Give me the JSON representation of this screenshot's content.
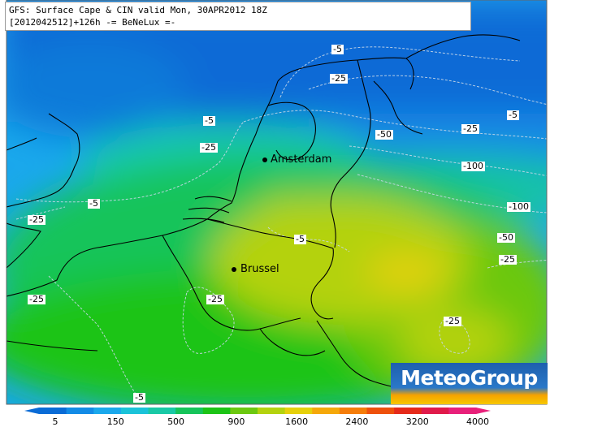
{
  "header": {
    "line1": "GFS: Surface Cape & CIN valid Mon, 30APR2012 18Z",
    "line2": "[2012042512]+126h -= BeNeLux =-"
  },
  "map": {
    "cities": [
      {
        "name": "Amsterdam"
      },
      {
        "name": "Brussel"
      }
    ],
    "cin_contour_labels": [
      "-5",
      "-25",
      "-5",
      "-25",
      "-50",
      "-25",
      "-5",
      "-100",
      "-5",
      "-25",
      "-100",
      "-50",
      "-25",
      "-5",
      "-25",
      "-25",
      "-25",
      "-5"
    ]
  },
  "colorbar": {
    "tick_labels": [
      "5",
      "150",
      "500",
      "900",
      "1600",
      "2400",
      "3200",
      "4000"
    ],
    "colors": [
      "#0a6bd6",
      "#138be6",
      "#1aa8ec",
      "#1ac3d9",
      "#19c9a6",
      "#16c45a",
      "#1cc416",
      "#6cc810",
      "#b4d20e",
      "#e6d00c",
      "#f5a80a",
      "#f57d0a",
      "#ee500c",
      "#e52a1a",
      "#e01a4a",
      "#e8207a"
    ]
  },
  "logo": {
    "text": "MeteoGroup"
  }
}
